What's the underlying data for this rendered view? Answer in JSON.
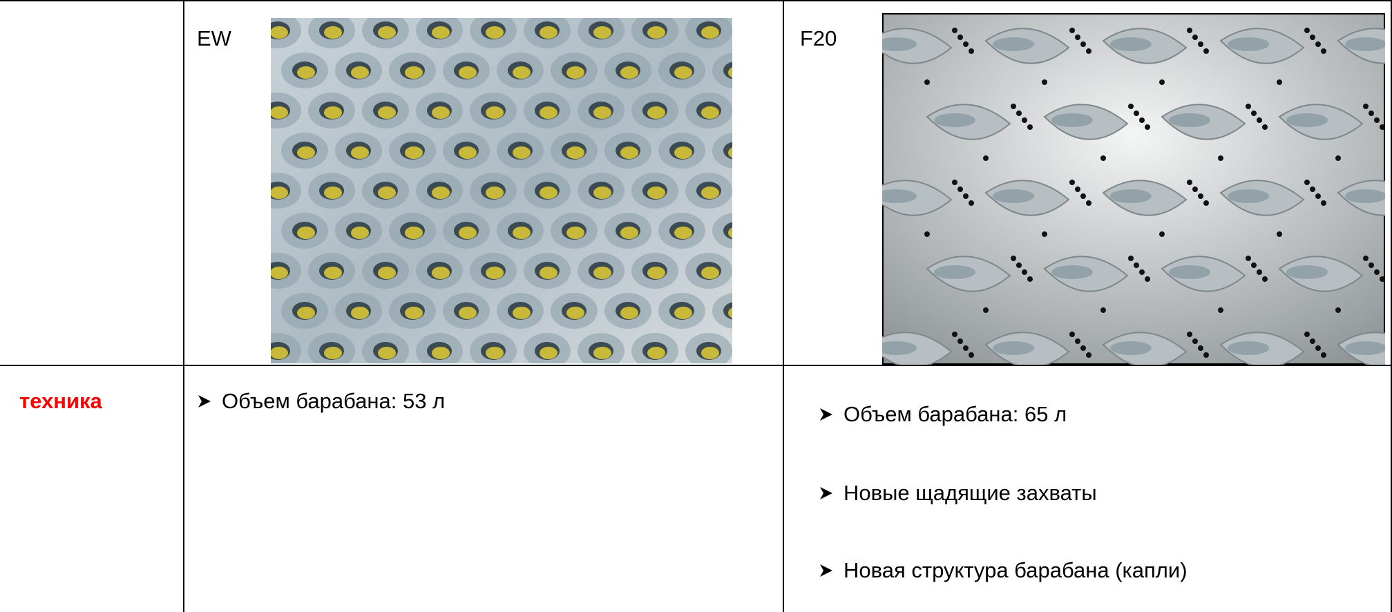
{
  "table": {
    "header": {
      "left_label": "EW",
      "right_label": "F20"
    },
    "row": {
      "label": "техника",
      "left_items": [
        "Объем барабана: 53 л"
      ],
      "right_items": [
        "Объем барабана: 65 л",
        "Новые щадящие захваты",
        "Новая структура барабана (капли)"
      ]
    }
  }
}
